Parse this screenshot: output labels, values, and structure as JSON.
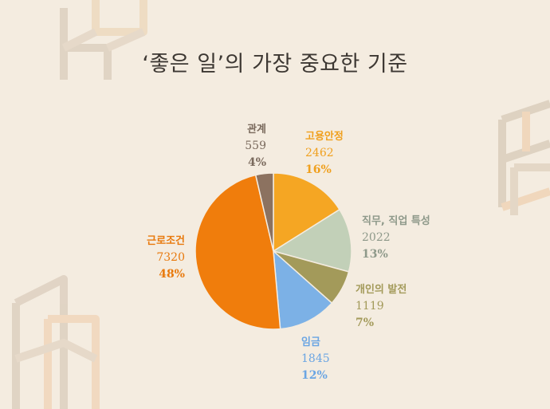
{
  "title": "‘좋은 일’의 가장 중요한 기준",
  "colors": {
    "background": "#f4ece0",
    "title": "#3d3833"
  },
  "chart_data": {
    "type": "pie",
    "title": "‘좋은 일’의 가장 중요한 기준",
    "start_angle_deg": 0,
    "direction": "clockwise",
    "slices": [
      {
        "name": "고용안정",
        "value": 2462,
        "percent_label": "16%",
        "color": "#f5a623",
        "label_color": "#f0a01e"
      },
      {
        "name": "직무, 직업 특성",
        "value": 2022,
        "percent_label": "13%",
        "color": "#c2d0b8",
        "label_color": "#8e998a"
      },
      {
        "name": "개인의 발전",
        "value": 1119,
        "percent_label": "7%",
        "color": "#a39a5a",
        "label_color": "#a39a5a"
      },
      {
        "name": "임금",
        "value": 1845,
        "percent_label": "12%",
        "color": "#7cb1e6",
        "label_color": "#6aa5e3"
      },
      {
        "name": "근로조건",
        "value": 7320,
        "percent_label": "48%",
        "color": "#f07d0c",
        "label_color": "#e8790c"
      },
      {
        "name": "관계",
        "value": 559,
        "percent_label": "4%",
        "color": "#8c7260",
        "label_color": "#7a6a5d"
      }
    ]
  }
}
